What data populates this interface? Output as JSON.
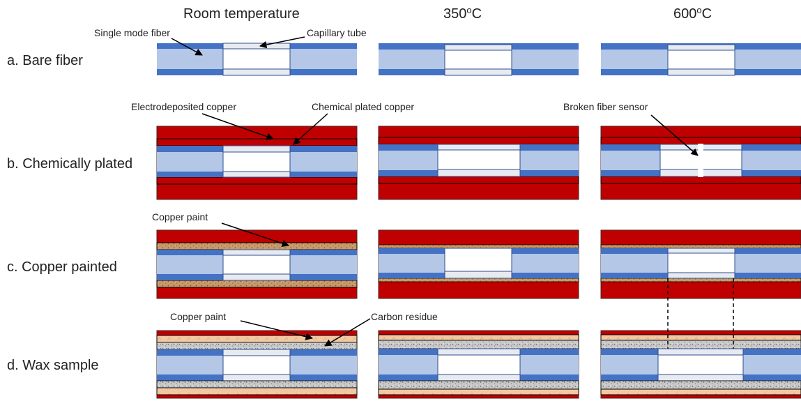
{
  "columns": {
    "room": "Room temperature",
    "t350": "350",
    "t600": "600",
    "deg_sup": "o",
    "deg_unit": "C"
  },
  "rows": {
    "a": "a. Bare fiber",
    "b": "b. Chemically plated",
    "c": "c. Copper painted",
    "d": "d. Wax sample"
  },
  "callouts": {
    "single_mode_fiber": "Single mode fiber",
    "capillary_tube": "Capillary tube",
    "electrodeposited_copper": "Electrodeposited copper",
    "chemical_plated_copper": "Chemical plated copper",
    "broken_fiber_sensor": "Broken fiber sensor",
    "copper_paint_c": "Copper paint",
    "copper_paint_d": "Copper paint",
    "carbon_residue": "Carbon residue"
  },
  "colors": {
    "fiber_core": "#b4c7e7",
    "fiber_cladding": "#4472c4",
    "capillary": "#e7eaf0",
    "copper_electrodeposit": "#c00000",
    "copper_paint": "#c89a6a",
    "wax_paint": "#f0c9a3",
    "carbon_residue": "#b9b9b9"
  }
}
